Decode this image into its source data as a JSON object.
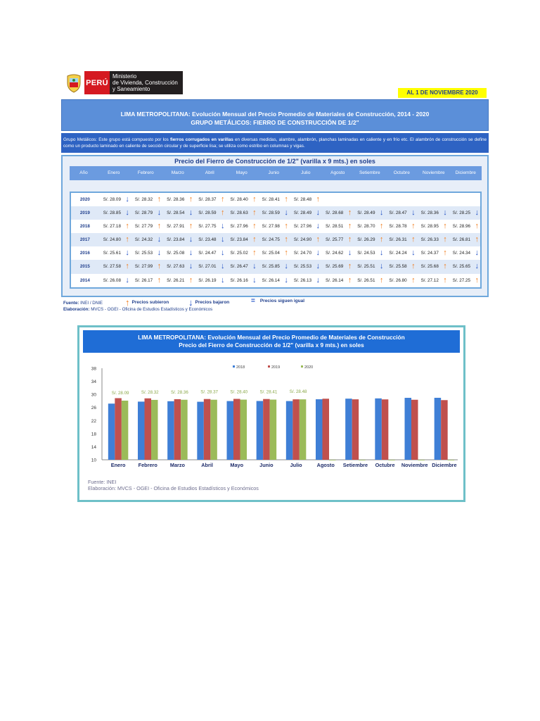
{
  "logo": {
    "country": "PERÚ",
    "ministry_lines": [
      "Ministerio",
      "de Vivienda, Construcción",
      "y Saneamiento"
    ]
  },
  "date_badge": "AL 1 DE NOVIEMBRE 2020",
  "header": {
    "title_line1": "LIMA METROPOLITANA: Evolución Mensual del  Precio Promedio de Materiales de Construcción, 2014 - 2020",
    "title_line2": "GRUPO METÁLICOS: FIERRO DE CONSTRUCCIÓN DE 1/2\""
  },
  "description": {
    "part1": "Grupo Metálicos: Este grupo está compuesto por los ",
    "bold": "fierros corrugados en varillas",
    "part2": " en diversas medidas, alambre, alambrón, planchas laminadas en caliente y en frío etc. El alambrón de construcción se define como un producto laminado en caliente de sección circular y de superficie lisa; se utiliza como estribo en columnas y vigas."
  },
  "table": {
    "title": "Precio del Fierro de Construcción de 1/2\" (varilla x 9 mts.) en soles",
    "year_header": "Año",
    "months": [
      "Enero",
      "Febrero",
      "Marzo",
      "Abril",
      "Mayo",
      "Junio",
      "Julio",
      "Agosto",
      "Setiembre",
      "Octubre",
      "Noviembre",
      "Diciembre"
    ],
    "rows": [
      {
        "year": "2020",
        "cells": [
          {
            "v": "S/. 28.09",
            "a": "down"
          },
          {
            "v": "S/. 28.32",
            "a": "up"
          },
          {
            "v": "S/. 28.36",
            "a": "up"
          },
          {
            "v": "S/. 28.37",
            "a": "up"
          },
          {
            "v": "S/. 28.40",
            "a": "up"
          },
          {
            "v": "S/. 28.41",
            "a": "up"
          },
          {
            "v": "S/. 28.48",
            "a": "up"
          },
          {
            "v": "",
            "a": ""
          },
          {
            "v": "",
            "a": ""
          },
          {
            "v": "",
            "a": ""
          },
          {
            "v": "",
            "a": ""
          },
          {
            "v": "",
            "a": ""
          }
        ]
      },
      {
        "year": "2019",
        "cells": [
          {
            "v": "S/. 28.85",
            "a": "down"
          },
          {
            "v": "S/. 28.79",
            "a": "down"
          },
          {
            "v": "S/. 28.54",
            "a": "down"
          },
          {
            "v": "S/. 28.59",
            "a": "up"
          },
          {
            "v": "S/. 28.63",
            "a": "up"
          },
          {
            "v": "S/. 28.59",
            "a": "down"
          },
          {
            "v": "S/. 28.49",
            "a": "down"
          },
          {
            "v": "S/. 28.68",
            "a": "up"
          },
          {
            "v": "S/. 28.49",
            "a": "down"
          },
          {
            "v": "S/. 28.47",
            "a": "down"
          },
          {
            "v": "S/. 28.36",
            "a": "down"
          },
          {
            "v": "S/. 28.25",
            "a": "down"
          }
        ]
      },
      {
        "year": "2018",
        "cells": [
          {
            "v": "S/. 27.18",
            "a": "up"
          },
          {
            "v": "S/. 27.79",
            "a": "up"
          },
          {
            "v": "S/. 27.91",
            "a": "up"
          },
          {
            "v": "S/. 27.75",
            "a": "down"
          },
          {
            "v": "S/. 27.96",
            "a": "up"
          },
          {
            "v": "S/. 27.98",
            "a": "up"
          },
          {
            "v": "S/. 27.96",
            "a": "down"
          },
          {
            "v": "S/. 28.51",
            "a": "up"
          },
          {
            "v": "S/. 28.70",
            "a": "up"
          },
          {
            "v": "S/. 28.78",
            "a": "up"
          },
          {
            "v": "S/. 28.95",
            "a": "up"
          },
          {
            "v": "S/. 28.96",
            "a": "up"
          }
        ]
      },
      {
        "year": "2017",
        "cells": [
          {
            "v": "S/. 24.80",
            "a": "up"
          },
          {
            "v": "S/. 24.32",
            "a": "down"
          },
          {
            "v": "S/. 23.84",
            "a": "down"
          },
          {
            "v": "S/. 23.48",
            "a": "down"
          },
          {
            "v": "S/. 23.84",
            "a": "up"
          },
          {
            "v": "S/. 24.75",
            "a": "up"
          },
          {
            "v": "S/. 24.90",
            "a": "up"
          },
          {
            "v": "S/. 25.77",
            "a": "up"
          },
          {
            "v": "S/. 26.29",
            "a": "up"
          },
          {
            "v": "S/. 26.31",
            "a": "up"
          },
          {
            "v": "S/. 26.33",
            "a": "up"
          },
          {
            "v": "S/. 26.81",
            "a": "up"
          }
        ]
      },
      {
        "year": "2016",
        "cells": [
          {
            "v": "S/. 25.61",
            "a": "down"
          },
          {
            "v": "S/. 25.53",
            "a": "down"
          },
          {
            "v": "S/. 25.08",
            "a": "down"
          },
          {
            "v": "S/. 24.47",
            "a": "down"
          },
          {
            "v": "S/. 25.02",
            "a": "up"
          },
          {
            "v": "S/. 25.04",
            "a": "up"
          },
          {
            "v": "S/. 24.70",
            "a": "down"
          },
          {
            "v": "S/. 24.62",
            "a": "down"
          },
          {
            "v": "S/. 24.53",
            "a": "down"
          },
          {
            "v": "S/. 24.24",
            "a": "down"
          },
          {
            "v": "S/. 24.37",
            "a": "up"
          },
          {
            "v": "S/. 24.34",
            "a": "down"
          }
        ]
      },
      {
        "year": "2015",
        "cells": [
          {
            "v": "S/. 27.58",
            "a": "up"
          },
          {
            "v": "S/. 27.99",
            "a": "up"
          },
          {
            "v": "S/. 27.63",
            "a": "down"
          },
          {
            "v": "S/. 27.01",
            "a": "down"
          },
          {
            "v": "S/. 26.47",
            "a": "down"
          },
          {
            "v": "S/. 25.85",
            "a": "down"
          },
          {
            "v": "S/. 25.53",
            "a": "down"
          },
          {
            "v": "S/. 25.69",
            "a": "up"
          },
          {
            "v": "S/. 25.51",
            "a": "down"
          },
          {
            "v": "S/. 25.58",
            "a": "up"
          },
          {
            "v": "S/. 25.68",
            "a": "up"
          },
          {
            "v": "S/. 25.65",
            "a": "down"
          }
        ]
      },
      {
        "year": "2014",
        "cells": [
          {
            "v": "S/. 26.08",
            "a": "down"
          },
          {
            "v": "S/. 26.17",
            "a": "up"
          },
          {
            "v": "S/. 26.21",
            "a": "up"
          },
          {
            "v": "S/. 26.19",
            "a": "down"
          },
          {
            "v": "S/. 26.16",
            "a": "down"
          },
          {
            "v": "S/. 26.14",
            "a": "down"
          },
          {
            "v": "S/. 26.13",
            "a": "down"
          },
          {
            "v": "S/. 26.14",
            "a": "up"
          },
          {
            "v": "S/. 26.51",
            "a": "up"
          },
          {
            "v": "S/. 26.80",
            "a": "up"
          },
          {
            "v": "S/. 27.12",
            "a": "up"
          },
          {
            "v": "S/. 27.25",
            "a": "up"
          }
        ]
      }
    ]
  },
  "legend": {
    "fuente_label": "Fuente:",
    "fuente_value": "INEI / DNIE",
    "up_label": "Precios subieron",
    "down_label": "Precios bajaron",
    "eq_label": "Precios siguen igual",
    "eq_symbol": "=",
    "elab_label": "Elaboración:",
    "elab_value": "MVCS - OGEI - Oficina de Estudios Estadísticos y Económicos",
    "colors": {
      "up": "#f07b1a",
      "down": "#1f4fc4"
    }
  },
  "chart_title_line1": "LIMA METROPOLITANA: Evolución Mensual del Precio Promedio de Materiales de Construcción",
  "chart_title_line2": "Precio del Fierro de Construcción de 1/2\" (varilla x 9 mts.) en soles",
  "chart_foot": {
    "fuente": "Fuente: INEI",
    "elab": "Elaboración: MVCS - OGEI - Oficina de Estudios Estadísticos y Económicos"
  },
  "chart_data": {
    "type": "bar",
    "categories": [
      "Enero",
      "Febrero",
      "Marzo",
      "Abril",
      "Mayo",
      "Junio",
      "Julio",
      "Agosto",
      "Setiembre",
      "Octubre",
      "Noviembre",
      "Diciembre"
    ],
    "series": [
      {
        "name": "2018",
        "color": "#3f7fd6",
        "values": [
          27.18,
          27.79,
          27.91,
          27.75,
          27.96,
          27.98,
          27.96,
          28.51,
          28.7,
          28.78,
          28.95,
          28.96
        ]
      },
      {
        "name": "2019",
        "color": "#c0504d",
        "values": [
          28.85,
          28.79,
          28.54,
          28.59,
          28.63,
          28.59,
          28.49,
          28.68,
          28.49,
          28.47,
          28.36,
          28.25
        ]
      },
      {
        "name": "2020",
        "color": "#9bbb59",
        "values": [
          28.09,
          28.32,
          28.36,
          28.37,
          28.4,
          28.41,
          28.48,
          10,
          10,
          10,
          10,
          10
        ]
      }
    ],
    "data_labels_2020": [
      "S/. 28.09",
      "S/. 28.32",
      "S/. 28.36",
      "S/. 28.37",
      "S/. 28.40",
      "S/. 28.41",
      "S/. 28.48"
    ],
    "ylim": [
      10,
      38
    ],
    "yticks": [
      10,
      14,
      18,
      22,
      26,
      30,
      34,
      38
    ],
    "grid": false,
    "legend_position": "top-right"
  }
}
